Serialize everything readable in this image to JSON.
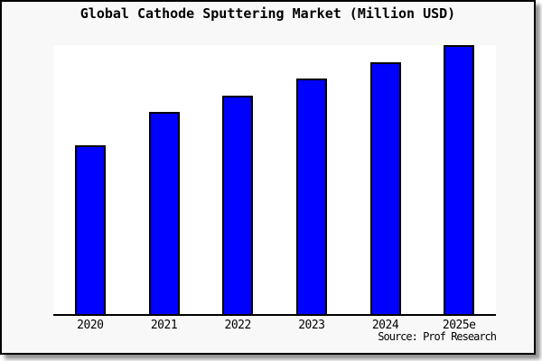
{
  "chart_data": {
    "type": "bar",
    "title": "Global Cathode Sputtering Market (Million USD)",
    "categories": [
      "2020",
      "2021",
      "2022",
      "2023",
      "2024",
      "2025e"
    ],
    "values": [
      62.7,
      75.0,
      81.3,
      87.7,
      93.6,
      100.0
    ],
    "value_scale": "percent of tallest bar (y-axis has no tick labels in chart)",
    "xlabel": "",
    "ylabel": "",
    "ylim": [
      0,
      100
    ],
    "grid": false,
    "legend": null,
    "bar_color": "#0000ff",
    "bar_border_color": "#000000",
    "axis_color": "#000000",
    "plot_background": "#ffffff",
    "frame_background": "#f8f8f8",
    "source_note": "Source: Prof Research"
  }
}
